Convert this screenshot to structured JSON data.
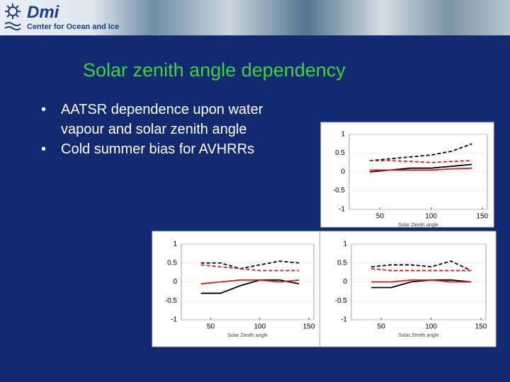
{
  "header": {
    "logo": "Dmi",
    "subtitle": "Center for Ocean and Ice"
  },
  "title": "Solar zenith angle dependency",
  "bullets": [
    "AATSR dependence upon water vapour and solar zenith angle",
    "Cold summer bias for AVHRRs"
  ],
  "chart_data": [
    {
      "type": "line",
      "xlabel": "Solar Zenith angle",
      "x": [
        40,
        60,
        80,
        100,
        120,
        140
      ],
      "xlim": [
        20,
        155
      ],
      "xticks": [
        50,
        100,
        150
      ],
      "ylim": [
        -1,
        1
      ],
      "yticks": [
        -1,
        -0.5,
        0,
        0.5,
        1
      ],
      "series": [
        {
          "color": "#000000",
          "dash": true,
          "values": [
            0.3,
            0.35,
            0.4,
            0.45,
            0.55,
            0.75
          ]
        },
        {
          "color": "#000000",
          "dash": false,
          "values": [
            0.0,
            0.05,
            0.1,
            0.1,
            0.15,
            0.2
          ]
        },
        {
          "color": "#d62020",
          "dash": true,
          "values": [
            0.3,
            0.3,
            0.28,
            0.25,
            0.28,
            0.3
          ]
        },
        {
          "color": "#d62020",
          "dash": false,
          "values": [
            0.05,
            0.05,
            0.05,
            0.05,
            0.08,
            0.1
          ]
        }
      ]
    },
    {
      "type": "line",
      "xlabel": "Solar Zenith angle",
      "x": [
        40,
        60,
        80,
        100,
        120,
        140
      ],
      "xlim": [
        20,
        155
      ],
      "xticks": [
        50,
        100,
        150
      ],
      "ylim": [
        -1,
        1
      ],
      "yticks": [
        -1,
        -0.5,
        0,
        0.5,
        1
      ],
      "series": [
        {
          "color": "#000000",
          "dash": true,
          "values": [
            0.5,
            0.5,
            0.35,
            0.45,
            0.55,
            0.5
          ]
        },
        {
          "color": "#000000",
          "dash": false,
          "values": [
            -0.3,
            -0.3,
            -0.1,
            0.05,
            0.05,
            -0.05
          ]
        },
        {
          "color": "#d62020",
          "dash": true,
          "values": [
            0.45,
            0.4,
            0.35,
            0.3,
            0.3,
            0.3
          ]
        },
        {
          "color": "#d62020",
          "dash": false,
          "values": [
            -0.05,
            0.0,
            0.05,
            0.05,
            0.0,
            0.05
          ]
        }
      ]
    },
    {
      "type": "line",
      "xlabel": "Solar Zenith angle",
      "x": [
        40,
        60,
        80,
        100,
        120,
        140
      ],
      "xlim": [
        20,
        155
      ],
      "xticks": [
        50,
        100,
        150
      ],
      "ylim": [
        -1,
        1
      ],
      "yticks": [
        -1,
        -0.5,
        0,
        0.5,
        1
      ],
      "series": [
        {
          "color": "#000000",
          "dash": true,
          "values": [
            0.4,
            0.45,
            0.45,
            0.4,
            0.55,
            0.3
          ]
        },
        {
          "color": "#000000",
          "dash": false,
          "values": [
            -0.15,
            -0.15,
            0.0,
            0.05,
            0.05,
            0.0
          ]
        },
        {
          "color": "#d62020",
          "dash": true,
          "values": [
            0.35,
            0.3,
            0.3,
            0.3,
            0.3,
            0.3
          ]
        },
        {
          "color": "#d62020",
          "dash": false,
          "values": [
            0.0,
            0.0,
            0.05,
            0.05,
            0.0,
            0.0
          ]
        }
      ]
    }
  ]
}
